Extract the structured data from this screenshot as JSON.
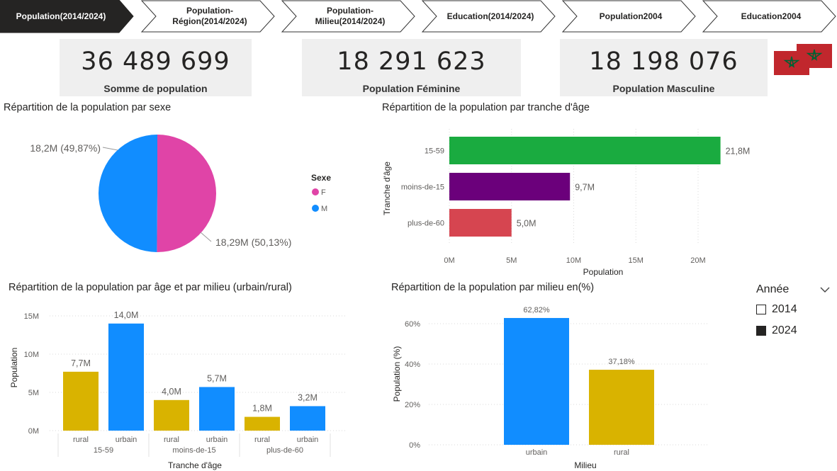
{
  "nav": {
    "tabs": [
      {
        "label": "Population(2014/2024)",
        "active": true
      },
      {
        "label": "Population-Région(2014/2024)",
        "active": false
      },
      {
        "label": "Population-Milieu(2014/2024)",
        "active": false
      },
      {
        "label": "Education(2014/2024)",
        "active": false
      },
      {
        "label": "Population2004",
        "active": false
      },
      {
        "label": "Education2004",
        "active": false
      }
    ],
    "tab_lines": [
      [
        "Population(2014/2024)"
      ],
      [
        "Population-",
        "Région(2014/2024)"
      ],
      [
        "Population-",
        "Milieu(2014/2024)"
      ],
      [
        "Education(2014/2024)"
      ],
      [
        "Population2004"
      ],
      [
        "Education2004"
      ]
    ]
  },
  "cards": [
    {
      "value": "36 489 699",
      "label": "Somme de population"
    },
    {
      "value": "18 291 623",
      "label": "Population Féminine"
    },
    {
      "value": "18 198 076",
      "label": "Population Masculine"
    }
  ],
  "flag": {
    "name": "morocco-flag",
    "colors": {
      "field": "#c1272d",
      "star": "#006233"
    }
  },
  "slicer": {
    "title": "Année",
    "items": [
      {
        "label": "2014",
        "checked": false
      },
      {
        "label": "2024",
        "checked": true
      }
    ]
  },
  "colors": {
    "female": "#e044a7",
    "male": "#118dff",
    "green": "#1aab40",
    "purple": "#6b007b",
    "red": "#d64550",
    "gold": "#d9b300",
    "blue": "#118dff"
  },
  "chart_data": [
    {
      "id": "pie-sexe",
      "type": "pie",
      "title": "Répartition de la population par sexe",
      "legend_title": "Sexe",
      "legend_position": "right",
      "slices": [
        {
          "name": "F",
          "value": 18.29,
          "label": "18,29M (50,13%)"
        },
        {
          "name": "M",
          "value": 18.2,
          "label": "18,2M (49,87%)"
        }
      ]
    },
    {
      "id": "bar-age",
      "type": "bar",
      "orientation": "horizontal",
      "title": "Répartition de la population par tranche d'âge",
      "xlabel": "Population",
      "ylabel": "Tranche d'âge",
      "categories": [
        "15-59",
        "moins-de-15",
        "plus-de-60"
      ],
      "values": [
        21.8,
        9.7,
        5.0
      ],
      "data_labels": [
        "21,8M",
        "9,7M",
        "5,0M"
      ],
      "xlim": [
        0,
        23
      ],
      "ticks": [
        0,
        5,
        10,
        15,
        20
      ],
      "tick_labels": [
        "0M",
        "5M",
        "10M",
        "15M",
        "20M"
      ],
      "grid": true
    },
    {
      "id": "bar-age-milieu",
      "type": "bar",
      "title": "Répartition de la population par âge et par milieu (urbain/rural)",
      "xlabel": "Tranche d'âge",
      "ylabel": "Population",
      "groups": [
        {
          "name": "15-59",
          "bars": [
            {
              "name": "rural",
              "value": 7.7,
              "label": "7,7M"
            },
            {
              "name": "urbain",
              "value": 14.0,
              "label": "14,0M"
            }
          ]
        },
        {
          "name": "moins-de-15",
          "bars": [
            {
              "name": "rural",
              "value": 4.0,
              "label": "4,0M"
            },
            {
              "name": "urbain",
              "value": 5.7,
              "label": "5,7M"
            }
          ]
        },
        {
          "name": "plus-de-60",
          "bars": [
            {
              "name": "rural",
              "value": 1.8,
              "label": "1,8M"
            },
            {
              "name": "urbain",
              "value": 3.2,
              "label": "3,2M"
            }
          ]
        }
      ],
      "ylim": [
        0,
        16
      ],
      "ticks": [
        0,
        5,
        10,
        15
      ],
      "tick_labels": [
        "0M",
        "5M",
        "10M",
        "15M"
      ],
      "grid": true
    },
    {
      "id": "bar-milieu-pct",
      "type": "bar",
      "title": "Répartition de la population par milieu en(%)",
      "xlabel": "Milieu",
      "ylabel": "Population (%)",
      "categories": [
        "urbain",
        "rural"
      ],
      "values": [
        62.82,
        37.18
      ],
      "data_labels": [
        "62,82%",
        "37,18%"
      ],
      "ylim": [
        0,
        68
      ],
      "ticks": [
        0,
        20,
        40,
        60
      ],
      "tick_labels": [
        "0%",
        "20%",
        "40%",
        "60%"
      ],
      "grid": true
    }
  ]
}
